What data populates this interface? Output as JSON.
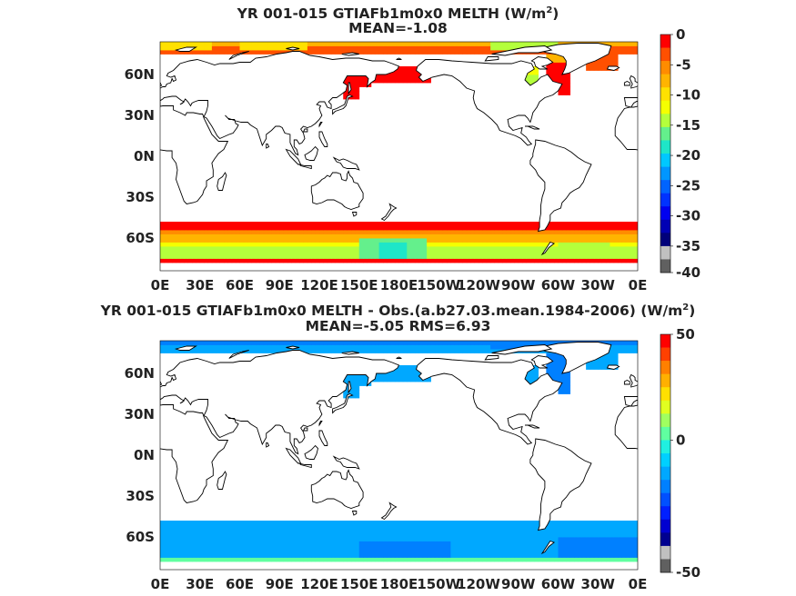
{
  "panels": [
    {
      "title_main": "YR 001-015 GTIAFb1m0x0  MELTH (W/m",
      "title_sup": "2",
      "title_tail": ")",
      "subtitle": "MEAN=-1.08",
      "colorbar": {
        "labels": [
          "0",
          "-5",
          "-10",
          "-15",
          "-20",
          "-25",
          "-30",
          "-35",
          "-40"
        ],
        "colors": [
          "#ff0000",
          "#ff5000",
          "#ff8c00",
          "#ffb400",
          "#ffe100",
          "#f5ff00",
          "#b4ff3c",
          "#64f08c",
          "#1ee6c8",
          "#00c8ff",
          "#0096ff",
          "#0064ff",
          "#0032ff",
          "#0000f0",
          "#0000b4",
          "#00007a",
          "#c0c0c0",
          "#606060"
        ]
      },
      "field": "melt"
    },
    {
      "title_main": "YR 001-015 GTIAFb1m0x0 MELTH - Obs.(a.b27.03.mean.1984-2006) (W/m",
      "title_sup": "2",
      "title_tail": ")",
      "subtitle": "MEAN=-5.05 RMS=6.93",
      "colorbar": {
        "labels": [
          "50",
          "0",
          "-50"
        ],
        "colors": [
          "#ff0000",
          "#ff4000",
          "#ff8000",
          "#ffb000",
          "#ffe000",
          "#e0ff20",
          "#a0ff60",
          "#60ffa0",
          "#20f0e0",
          "#00d0ff",
          "#00a8ff",
          "#0080ff",
          "#0050ff",
          "#0020ff",
          "#0000d0",
          "#000090",
          "#c0c0c0",
          "#606060"
        ]
      },
      "field": "diff"
    }
  ],
  "lat_labels": [
    "60N",
    "30N",
    "0N",
    "30S",
    "60S"
  ],
  "lon_labels": [
    "0E",
    "30E",
    "60E",
    "90E",
    "120E",
    "150E",
    "180E",
    "150W",
    "120W",
    "90W",
    "60W",
    "30W",
    "0E"
  ]
}
